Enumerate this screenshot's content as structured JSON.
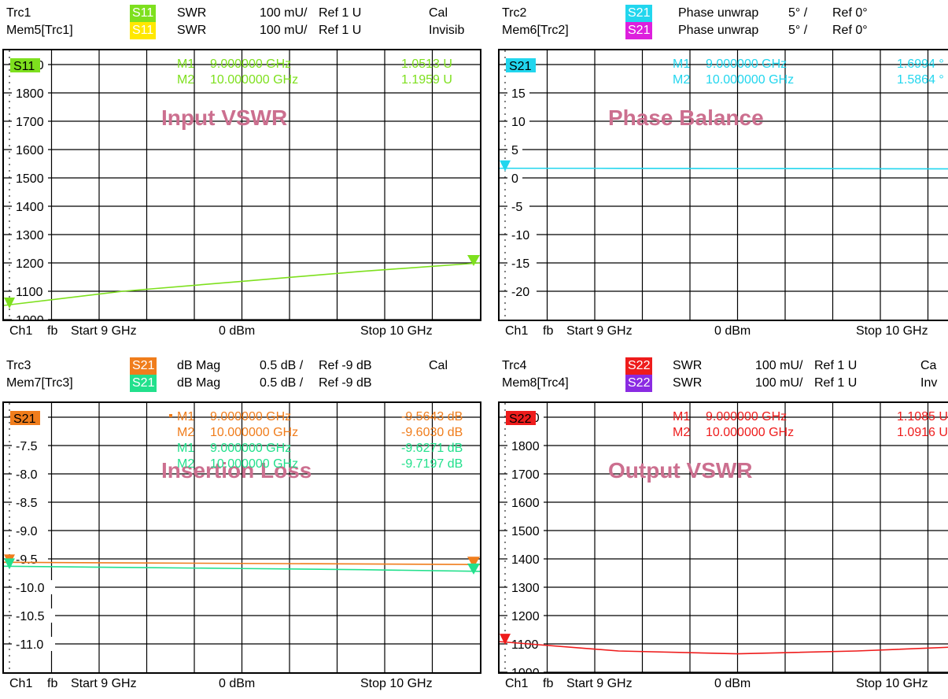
{
  "colors": {
    "green": "#7ee01e",
    "yellow": "#ffe800",
    "cyan": "#22d6ee",
    "magenta": "#dd1fdd",
    "orange": "#f07d1c",
    "mint": "#22e08c",
    "red": "#ee1c1c",
    "purple": "#8a2be2",
    "title": "#cc6f8f"
  },
  "chart_data": [
    {
      "type": "line",
      "title": "Input VSWR",
      "trace_label": "S11",
      "header": [
        {
          "name": "Trc1",
          "badge": "S11",
          "badge_color": "#7ee01e",
          "format": "SWR",
          "scale": "100 mU/",
          "ref": "Ref 1 U",
          "state": "Cal"
        },
        {
          "name": "Mem5[Trc1]",
          "badge": "S11",
          "badge_color": "#ffe800",
          "format": "SWR",
          "scale": "100 mU/",
          "ref": "Ref 1 U",
          "state": "Invisib"
        }
      ],
      "markers": [
        {
          "label": "M1",
          "freq": "9.000000 GHz",
          "value": "1.0513 U",
          "color": "#7ee01e"
        },
        {
          "label": "M2",
          "freq": "10.000000 GHz",
          "value": "1.1959 U",
          "color": "#7ee01e"
        }
      ],
      "ylim": [
        1000,
        1950
      ],
      "ytick_labels": [
        "1900",
        "1800",
        "1700",
        "1600",
        "1500",
        "1400",
        "1300",
        "1200",
        "1100",
        "1000"
      ],
      "series": [
        {
          "color": "#7ee01e",
          "x": [
            9.0,
            9.25,
            9.5,
            9.75,
            10.0
          ],
          "values": [
            1050,
            1100,
            1135,
            1170,
            1200
          ]
        }
      ],
      "footer": {
        "channel": "Ch1",
        "fb": "fb",
        "start": "Start 9 GHz",
        "power": "0 dBm",
        "stop": "Stop 10 GHz"
      }
    },
    {
      "type": "line",
      "title": "Phase Balance",
      "trace_label": "S21",
      "header": [
        {
          "name": "Trc2",
          "badge": "S21",
          "badge_color": "#22d6ee",
          "format": "Phase unwrap",
          "scale": "5° /",
          "ref": "Ref 0°",
          "state": ""
        },
        {
          "name": "Mem6[Trc2]",
          "badge": "S21",
          "badge_color": "#dd1fdd",
          "format": "Phase unwrap",
          "scale": "5° /",
          "ref": "Ref 0°",
          "state": ""
        }
      ],
      "markers": [
        {
          "label": "M1",
          "freq": "9.000000 GHz",
          "value": "1.6994 °",
          "color": "#22d6ee"
        },
        {
          "label": "M2",
          "freq": "10.000000 GHz",
          "value": "1.5864 °",
          "color": "#22d6ee"
        }
      ],
      "ylim": [
        -25,
        22.5
      ],
      "ytick_labels": [
        "20",
        "15",
        "10",
        "5",
        "0",
        "-5",
        "-10",
        "-15",
        "-20"
      ],
      "series": [
        {
          "color": "#22d6ee",
          "x": [
            9.0,
            9.25,
            9.5,
            9.75,
            10.0
          ],
          "values": [
            1.7,
            1.68,
            1.65,
            1.62,
            1.59
          ]
        }
      ],
      "footer": {
        "channel": "Ch1",
        "fb": "fb",
        "start": "Start 9 GHz",
        "power": "0 dBm",
        "stop": "Stop 10 GHz"
      }
    },
    {
      "type": "line",
      "title": "Insertion Loss",
      "trace_label": "S21",
      "header": [
        {
          "name": "Trc3",
          "badge": "S21",
          "badge_color": "#f07d1c",
          "format": "dB Mag",
          "scale": "0.5 dB /",
          "ref": "Ref -9 dB",
          "state": "Cal"
        },
        {
          "name": "Mem7[Trc3]",
          "badge": "S21",
          "badge_color": "#22e08c",
          "format": "dB Mag",
          "scale": "0.5 dB /",
          "ref": "Ref -9 dB",
          "state": ""
        }
      ],
      "markers": [
        {
          "label": "M1",
          "freq": "9.000000 GHz",
          "value": "-9.5643 dB",
          "color": "#f07d1c"
        },
        {
          "label": "M2",
          "freq": "10.000000 GHz",
          "value": "-9.6030 dB",
          "color": "#f07d1c"
        },
        {
          "label": "M1",
          "freq": "9.000000 GHz",
          "value": "-9.6271 dB",
          "color": "#22e08c"
        },
        {
          "label": "M2",
          "freq": "10.000000 GHz",
          "value": "-9.7197 dB",
          "color": "#22e08c"
        }
      ],
      "ylim": [
        -11.5,
        -6.75
      ],
      "ytick_labels": [
        "-7.0",
        "-7.5",
        "-8.0",
        "-8.5",
        "-9.0",
        "-9.5",
        "-10.0",
        "-10.5",
        "-11.0"
      ],
      "series": [
        {
          "color": "#f07d1c",
          "x": [
            9.0,
            9.25,
            9.5,
            9.75,
            10.0
          ],
          "values": [
            -9.56,
            -9.57,
            -9.58,
            -9.59,
            -9.6
          ]
        },
        {
          "color": "#22e08c",
          "x": [
            9.0,
            9.25,
            9.5,
            9.75,
            10.0
          ],
          "values": [
            -9.63,
            -9.65,
            -9.67,
            -9.69,
            -9.72
          ]
        }
      ],
      "footer": {
        "channel": "Ch1",
        "fb": "fb",
        "start": "Start 9 GHz",
        "power": "0 dBm",
        "stop": "Stop 10 GHz"
      }
    },
    {
      "type": "line",
      "title": "Output VSWR",
      "trace_label": "S22",
      "header": [
        {
          "name": "Trc4",
          "badge": "S22",
          "badge_color": "#ee1c1c",
          "format": "SWR",
          "scale": "100 mU/",
          "ref": "Ref 1 U",
          "state": "Ca"
        },
        {
          "name": "Mem8[Trc4]",
          "badge": "S22",
          "badge_color": "#8a2be2",
          "format": "SWR",
          "scale": "100 mU/",
          "ref": "Ref 1 U",
          "state": "Inv"
        }
      ],
      "markers": [
        {
          "label": "M1",
          "freq": "9.000000 GHz",
          "value": "1.1085 U",
          "color": "#ee1c1c"
        },
        {
          "label": "M2",
          "freq": "10.000000 GHz",
          "value": "1.0916 U",
          "color": "#ee1c1c"
        }
      ],
      "ylim": [
        1000,
        1950
      ],
      "ytick_labels": [
        "1900",
        "1800",
        "1700",
        "1600",
        "1500",
        "1400",
        "1300",
        "1200",
        "1100",
        "1000"
      ],
      "series": [
        {
          "color": "#ee1c1c",
          "x": [
            9.0,
            9.25,
            9.5,
            9.75,
            10.0
          ],
          "values": [
            1108,
            1075,
            1065,
            1075,
            1092
          ]
        }
      ],
      "footer": {
        "channel": "Ch1",
        "fb": "fb",
        "start": "Start 9 GHz",
        "power": "0 dBm",
        "stop": "Stop 10 GHz"
      }
    }
  ]
}
